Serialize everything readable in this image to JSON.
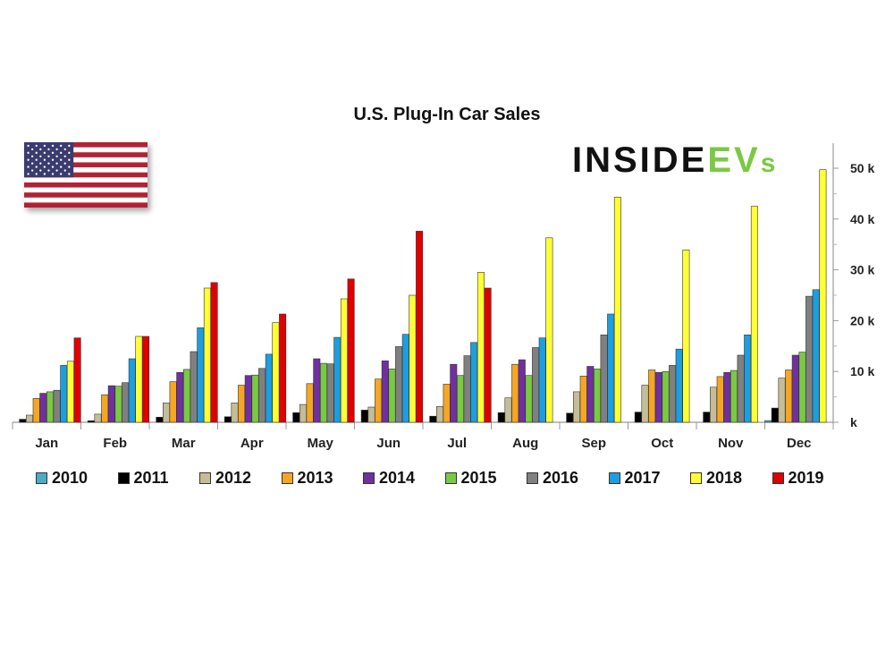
{
  "chart_data": {
    "type": "bar",
    "title": "U.S. Plug-In Car Sales",
    "xlabel": "",
    "ylabel": "",
    "ylim": [
      0,
      55000
    ],
    "yticks": [
      0,
      10000,
      20000,
      30000,
      40000,
      50000
    ],
    "ytick_labels": [
      "k",
      "10 k",
      "20 k",
      "30 k",
      "40 k",
      "50 k"
    ],
    "y_axis_position": "right",
    "grid": false,
    "legend_position": "bottom",
    "categories": [
      "Jan",
      "Feb",
      "Mar",
      "Apr",
      "May",
      "Jun",
      "Jul",
      "Aug",
      "Sep",
      "Oct",
      "Nov",
      "Dec"
    ],
    "series": [
      {
        "name": "2010",
        "color": "#4bacc6",
        "values": [
          null,
          null,
          null,
          null,
          null,
          null,
          null,
          null,
          null,
          null,
          null,
          326
        ]
      },
      {
        "name": "2011",
        "color": "#000000",
        "values": [
          600,
          300,
          1000,
          1100,
          1900,
          2400,
          1200,
          1900,
          1800,
          2000,
          2000,
          2800
        ]
      },
      {
        "name": "2012",
        "color": "#c4bd97",
        "values": [
          1400,
          1600,
          3800,
          3800,
          3500,
          3000,
          3100,
          4800,
          6000,
          7300,
          6900,
          8700
        ]
      },
      {
        "name": "2013",
        "color": "#f5a623",
        "values": [
          4700,
          5400,
          8000,
          7300,
          7600,
          8500,
          7500,
          11400,
          9100,
          10300,
          9000,
          10300
        ]
      },
      {
        "name": "2014",
        "color": "#7030a0",
        "values": [
          5700,
          7200,
          9800,
          9200,
          12500,
          12100,
          11400,
          12300,
          11000,
          9800,
          9800,
          13200
        ]
      },
      {
        "name": "2015",
        "color": "#7ac943",
        "values": [
          6000,
          7100,
          10400,
          9300,
          11600,
          10500,
          9200,
          9200,
          10500,
          10000,
          10200,
          13800
        ]
      },
      {
        "name": "2016",
        "color": "#808080",
        "values": [
          6300,
          7800,
          13900,
          10600,
          11500,
          14900,
          13100,
          14700,
          17200,
          11200,
          13200,
          24800
        ]
      },
      {
        "name": "2017",
        "color": "#1c9ee0",
        "values": [
          11200,
          12500,
          18600,
          13400,
          16700,
          17300,
          15700,
          16600,
          21300,
          14400,
          17200,
          26100
        ]
      },
      {
        "name": "2018",
        "color": "#ffff33",
        "values": [
          12000,
          16900,
          26400,
          19600,
          24300,
          25000,
          29500,
          36300,
          44300,
          33900,
          42500,
          49700
        ]
      },
      {
        "name": "2019",
        "color": "#e00000",
        "values": [
          16600,
          16900,
          27500,
          21300,
          28200,
          37600,
          26400,
          null,
          null,
          null,
          null,
          null
        ]
      }
    ]
  },
  "logo": {
    "part1": "INSIDE",
    "part2": "EV",
    "part3": "s"
  }
}
